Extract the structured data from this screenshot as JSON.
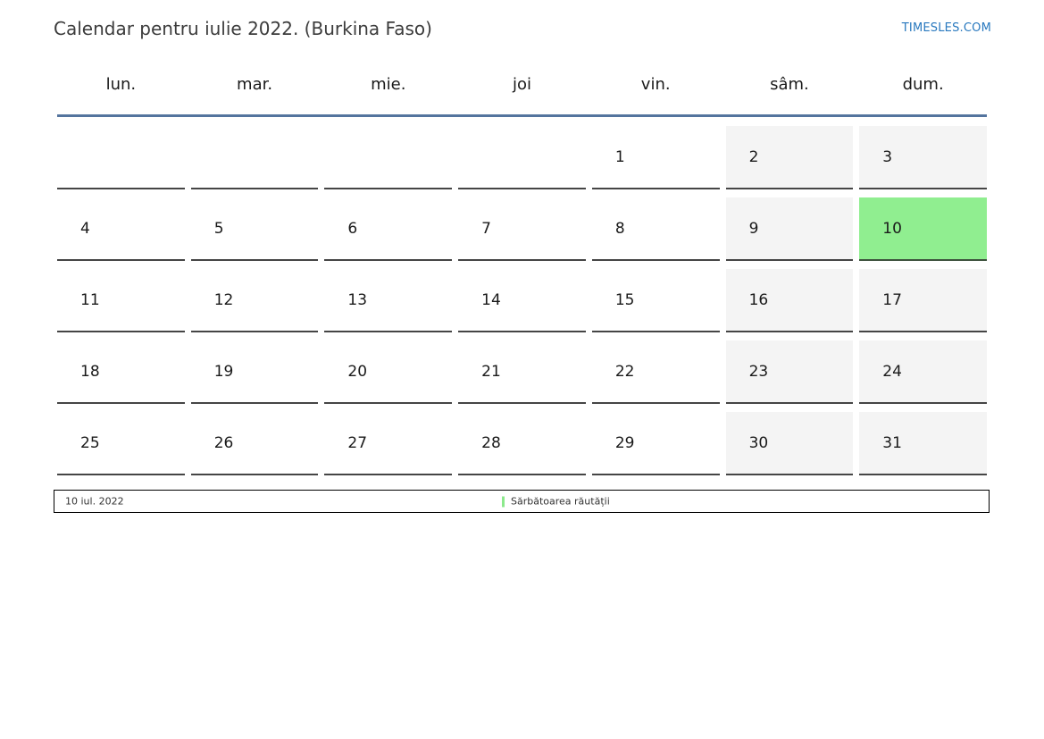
{
  "header": {
    "title": "Calendar pentru iulie 2022. (Burkina Faso)",
    "site_link": "TIMESLES.COM"
  },
  "calendar": {
    "day_headers": [
      "lun.",
      "mar.",
      "mie.",
      "joi",
      "vin.",
      "sâm.",
      "dum."
    ],
    "weeks": [
      [
        "",
        "",
        "",
        "",
        "1",
        "2",
        "3"
      ],
      [
        "4",
        "5",
        "6",
        "7",
        "8",
        "9",
        "10"
      ],
      [
        "11",
        "12",
        "13",
        "14",
        "15",
        "16",
        "17"
      ],
      [
        "18",
        "19",
        "20",
        "21",
        "22",
        "23",
        "24"
      ],
      [
        "25",
        "26",
        "27",
        "28",
        "29",
        "30",
        "31"
      ]
    ],
    "highlighted_day": "10",
    "weekend_days": [
      "sâm.",
      "dum."
    ]
  },
  "footer": {
    "date_label": "10 iul. 2022",
    "legend": [
      {
        "label": "Sărbătoarea răutății",
        "color": "#8ce98c"
      }
    ]
  },
  "colors": {
    "accent-line": "#54749e",
    "link-blue": "#2878be",
    "weekend-bg": "#f4f4f4",
    "highlight-bg": "#90ee90",
    "cell-border": "#454545",
    "legend-green": "#8ce98c",
    "text-dark": "#3c3c3c"
  }
}
